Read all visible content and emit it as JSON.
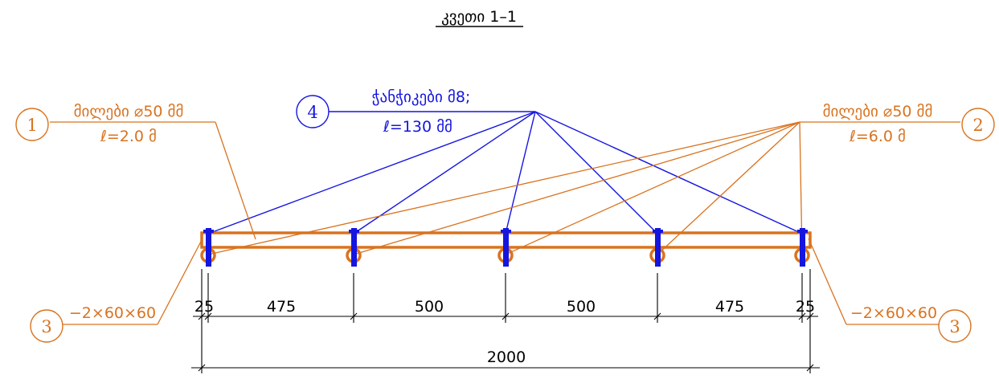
{
  "title": "კვეთი 1–1",
  "colors": {
    "orange": "#D9731F",
    "blue": "#1515E0",
    "black": "#000000"
  },
  "callouts": {
    "c1": {
      "number": "1",
      "line1": "მილები ⌀50 მმ",
      "line2": "ℓ=2.0 მ"
    },
    "c2": {
      "number": "2",
      "line1": "მილები ⌀50 მმ",
      "line2": "ℓ=6.0 მ"
    },
    "c3_left": {
      "number": "3",
      "text": "−2×60×60"
    },
    "c3_right": {
      "number": "3",
      "text": "−2×60×60"
    },
    "c4": {
      "number": "4",
      "line1": "ჭანჭიკები მ8;",
      "line2": "ℓ=130 მმ"
    }
  },
  "dimensions": {
    "segments": [
      "25",
      "475",
      "500",
      "500",
      "475",
      "25"
    ],
    "total": "2000"
  }
}
